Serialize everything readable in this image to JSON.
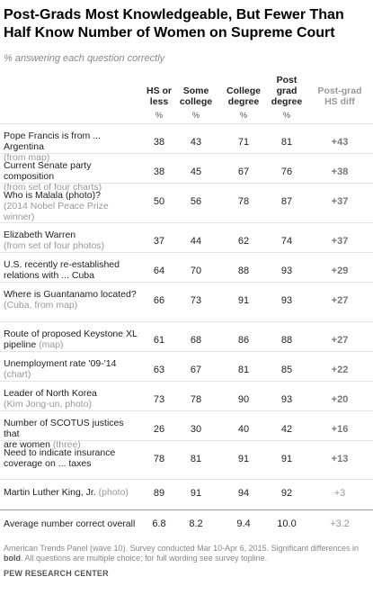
{
  "title": "Post-Grads Most Knowledgeable, But Fewer Than Half Know Number of Women on Supreme Court",
  "subtitle": "% answering each question correctly",
  "columns": [
    {
      "label": "HS or less",
      "unit": "%"
    },
    {
      "label": "Some college",
      "unit": "%"
    },
    {
      "label": "College degree",
      "unit": "%"
    },
    {
      "label": "Post grad degree",
      "unit": "%"
    },
    {
      "label": "Post-grad HS diff",
      "unit": ""
    }
  ],
  "rows": [
    {
      "question": "Pope Francis is from ... Argentina",
      "sub": "(from map)",
      "values": [
        "38",
        "43",
        "71",
        "81"
      ],
      "diff": "+43"
    },
    {
      "question": "Current Senate party composition",
      "sub": "(from set of four charts)",
      "values": [
        "38",
        "45",
        "67",
        "76"
      ],
      "diff": "+38"
    },
    {
      "question": "Who is Malala (photo)?",
      "sub": "(2014 Nobel Peace Prize winner)",
      "values": [
        "50",
        "56",
        "78",
        "87"
      ],
      "diff": "+37"
    },
    {
      "question": "Elizabeth Warren",
      "sub": "(from set of four photos)",
      "values": [
        "37",
        "44",
        "62",
        "74"
      ],
      "diff": "+37"
    },
    {
      "question": "U.S. recently re-established",
      "question2": "relations with ... Cuba",
      "sub": "",
      "values": [
        "64",
        "70",
        "88",
        "93"
      ],
      "diff": "+29"
    },
    {
      "question": "Where is Guantanamo located?",
      "sub": "(Cuba, from map)",
      "values": [
        "66",
        "73",
        "91",
        "93"
      ],
      "diff": "+27"
    },
    {
      "question": "Route of proposed Keystone XL",
      "question2": "pipeline",
      "sub": "(map)",
      "values": [
        "61",
        "68",
        "86",
        "88"
      ],
      "diff": "+27"
    },
    {
      "question": "Unemployment rate '09-'14",
      "sub": "(chart)",
      "values": [
        "63",
        "67",
        "81",
        "85"
      ],
      "diff": "+22"
    },
    {
      "question": "Leader of North Korea",
      "sub": "(Kim Jong-un, photo)",
      "values": [
        "73",
        "78",
        "90",
        "93"
      ],
      "diff": "+20"
    },
    {
      "question": "Number of SCOTUS justices that",
      "question2": "are women",
      "sub": "(three)",
      "values": [
        "26",
        "30",
        "40",
        "42"
      ],
      "diff": "+16"
    },
    {
      "question": "Need to indicate insurance",
      "question2": "coverage on ... taxes",
      "sub": "",
      "values": [
        "78",
        "81",
        "91",
        "91"
      ],
      "diff": "+13"
    },
    {
      "question": "Martin Luther King, Jr.",
      "sub": "(photo)",
      "values": [
        "89",
        "91",
        "94",
        "92"
      ],
      "diff": "+3",
      "inline": true
    }
  ],
  "average": {
    "label": "Average number correct overall",
    "values": [
      "6.8",
      "8.2",
      "9.4",
      "10.0"
    ],
    "diff": "+3.2"
  },
  "note_pre": "American Trends Panel (wave 10). Survey conducted Mar 10-Apr 6, 2015. Significant differences in ",
  "note_bold": "bold",
  "note_post": ". All questions are multiple choice; for full wording see survey topline.",
  "source": "PEW RESEARCH CENTER",
  "chart_data": {
    "type": "table",
    "title": "Post-Grads Most Knowledgeable, But Fewer Than Half Know Number of Women on Supreme Court",
    "subtitle": "% answering each question correctly",
    "categories": [
      "HS or less",
      "Some college",
      "College degree",
      "Post grad degree"
    ],
    "series": [
      {
        "name": "Pope Francis is from ... Argentina",
        "values": [
          38,
          43,
          71,
          81
        ]
      },
      {
        "name": "Current Senate party composition",
        "values": [
          38,
          45,
          67,
          76
        ]
      },
      {
        "name": "Who is Malala (photo)?",
        "values": [
          50,
          56,
          78,
          87
        ]
      },
      {
        "name": "Elizabeth Warren",
        "values": [
          37,
          44,
          62,
          74
        ]
      },
      {
        "name": "U.S. recently re-established relations with ... Cuba",
        "values": [
          64,
          70,
          88,
          93
        ]
      },
      {
        "name": "Where is Guantanamo located?",
        "values": [
          66,
          73,
          91,
          93
        ]
      },
      {
        "name": "Route of proposed Keystone XL pipeline",
        "values": [
          61,
          68,
          86,
          88
        ]
      },
      {
        "name": "Unemployment rate '09-'14",
        "values": [
          63,
          67,
          81,
          85
        ]
      },
      {
        "name": "Leader of North Korea",
        "values": [
          73,
          78,
          90,
          93
        ]
      },
      {
        "name": "Number of SCOTUS justices that are women",
        "values": [
          26,
          30,
          40,
          42
        ]
      },
      {
        "name": "Need to indicate insurance coverage on ... taxes",
        "values": [
          78,
          81,
          91,
          91
        ]
      },
      {
        "name": "Martin Luther King, Jr.",
        "values": [
          89,
          91,
          94,
          92
        ]
      },
      {
        "name": "Average number correct overall",
        "values": [
          6.8,
          8.2,
          9.4,
          10.0
        ]
      }
    ],
    "diffs": [
      "+43",
      "+38",
      "+37",
      "+37",
      "+29",
      "+27",
      "+27",
      "+22",
      "+20",
      "+16",
      "+13",
      "+3",
      "+3.2"
    ]
  }
}
